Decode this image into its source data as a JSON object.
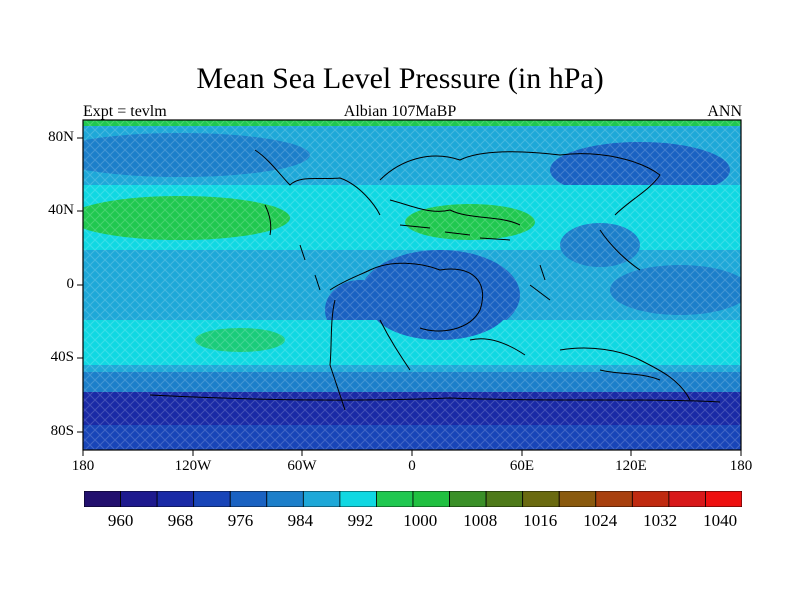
{
  "header": {
    "title": "Mean Sea Level Pressure (in hPa)",
    "left": "Expt = tevlm",
    "center": "Albian   107MaBP",
    "right": "ANN"
  },
  "axes": {
    "lon_ticks": [
      "180",
      "120W",
      "60W",
      "0",
      "60E",
      "120E",
      "180"
    ],
    "lat_ticks": [
      "80N",
      "40N",
      "0",
      "40S",
      "80S"
    ]
  },
  "colorbar": {
    "colors": [
      "#22106e",
      "#1e1a8e",
      "#1a2aa6",
      "#1845b8",
      "#1a62c2",
      "#1c7fca",
      "#1ea8d8",
      "#10d8e2",
      "#20c850",
      "#20c040",
      "#3a9028",
      "#4e7a1a",
      "#6a6a10",
      "#8a5a0e",
      "#a8400e",
      "#c02a10",
      "#d8181a",
      "#ee1010"
    ],
    "labels": [
      "960",
      "968",
      "976",
      "984",
      "992",
      "1000",
      "1008",
      "1016",
      "1024",
      "1032",
      "1040"
    ]
  }
}
